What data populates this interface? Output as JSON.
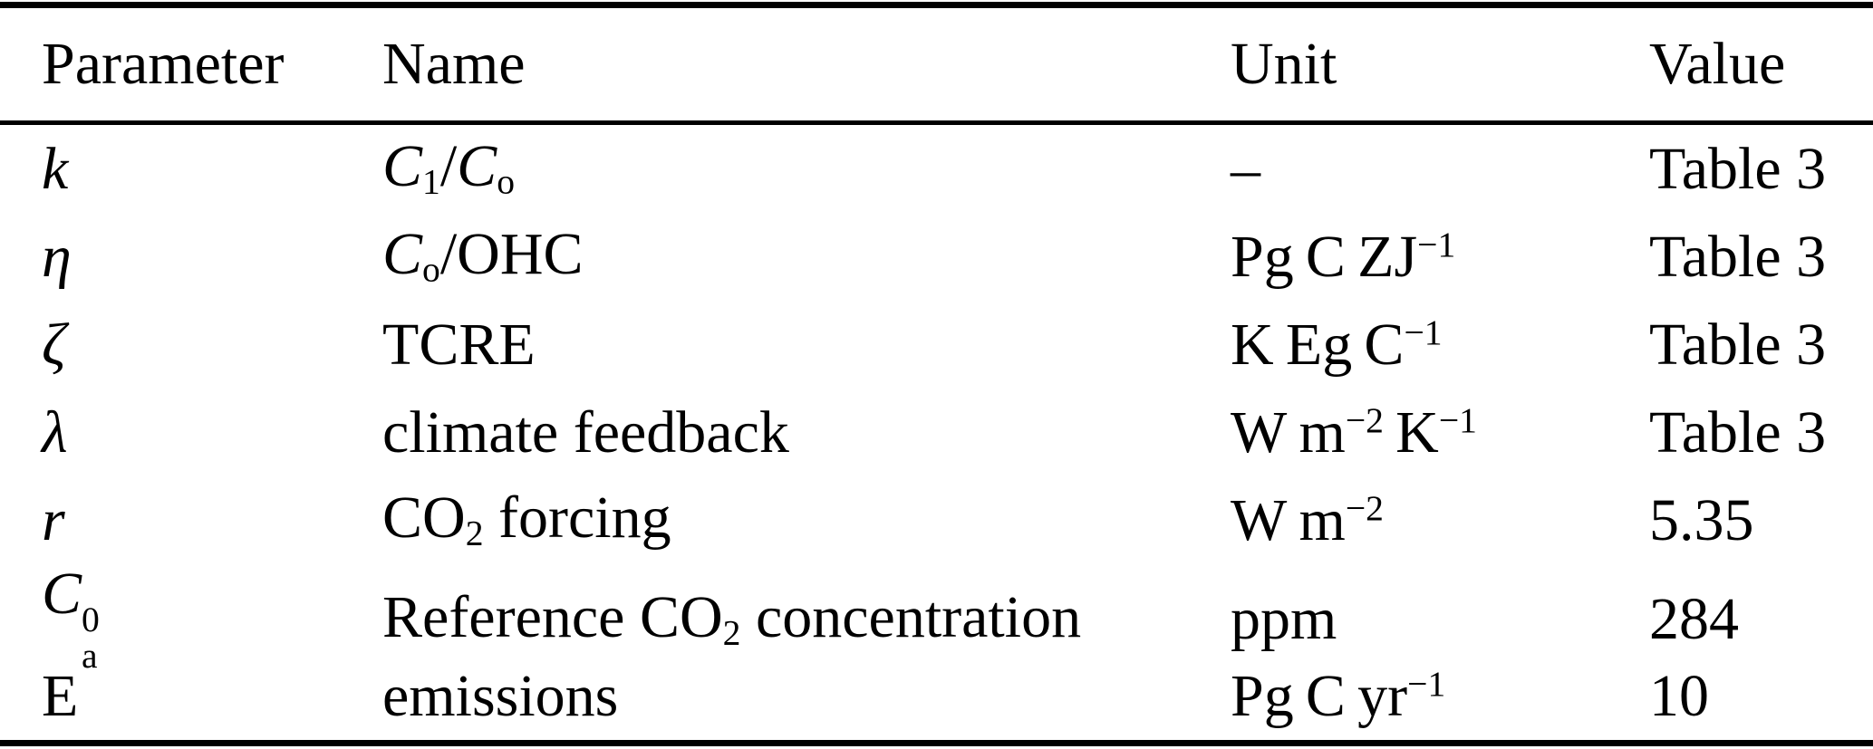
{
  "page": {
    "background": "#ffffff",
    "text_color": "#000000",
    "rule_color": "#000000"
  },
  "table": {
    "columns": [
      "Parameter",
      "Name",
      "Unit",
      "Value"
    ],
    "rows": [
      {
        "parameter": [
          {
            "t": "k",
            "s": "i"
          }
        ],
        "name": [
          {
            "t": "C",
            "s": "i"
          },
          {
            "t": "1",
            "s": "sub"
          },
          {
            "t": "/"
          },
          {
            "t": "C",
            "s": "i"
          },
          {
            "t": "o",
            "s": "sub"
          }
        ],
        "unit": [
          {
            "t": "–"
          }
        ],
        "value": [
          {
            "t": "Table 3"
          }
        ]
      },
      {
        "parameter": [
          {
            "t": "η",
            "s": "i"
          }
        ],
        "name": [
          {
            "t": "C",
            "s": "i"
          },
          {
            "t": "o",
            "s": "sub"
          },
          {
            "t": "/OHC"
          }
        ],
        "unit": [
          {
            "t": "Pg C ZJ"
          },
          {
            "t": "−1",
            "s": "sup"
          }
        ],
        "value": [
          {
            "t": "Table 3"
          }
        ]
      },
      {
        "parameter": [
          {
            "t": "ζ",
            "s": "i"
          }
        ],
        "name": [
          {
            "t": "TCRE"
          }
        ],
        "unit": [
          {
            "t": "K Eg C"
          },
          {
            "t": "−1",
            "s": "sup"
          }
        ],
        "value": [
          {
            "t": "Table 3"
          }
        ]
      },
      {
        "parameter": [
          {
            "t": "λ",
            "s": "i"
          }
        ],
        "name": [
          {
            "t": "climate feedback"
          }
        ],
        "unit": [
          {
            "t": "W m"
          },
          {
            "t": "−2",
            "s": "sup"
          },
          {
            "t": " K"
          },
          {
            "t": "−1",
            "s": "sup"
          }
        ],
        "value": [
          {
            "t": "Table 3"
          }
        ]
      },
      {
        "parameter": [
          {
            "t": "r",
            "s": "i"
          }
        ],
        "name": [
          {
            "t": "CO"
          },
          {
            "t": "2",
            "s": "sub"
          },
          {
            "t": " forcing"
          }
        ],
        "unit": [
          {
            "t": "W m"
          },
          {
            "t": "−2",
            "s": "sup"
          }
        ],
        "value": [
          {
            "t": "5.35"
          }
        ]
      },
      {
        "parameter": [
          {
            "t": "C",
            "s": "i"
          },
          {
            "s": "stack",
            "up": "0",
            "down": "a"
          }
        ],
        "name": [
          {
            "t": "Reference CO"
          },
          {
            "t": "2",
            "s": "sub"
          },
          {
            "t": " concentration"
          }
        ],
        "unit": [
          {
            "t": "ppm"
          }
        ],
        "value": [
          {
            "t": "284"
          }
        ]
      },
      {
        "parameter": [
          {
            "t": "E"
          }
        ],
        "name": [
          {
            "t": "emissions"
          }
        ],
        "unit": [
          {
            "t": "Pg C yr"
          },
          {
            "t": "−1",
            "s": "sup"
          }
        ],
        "value": [
          {
            "t": "10"
          }
        ]
      }
    ]
  },
  "chart_data": {
    "type": "table",
    "columns": [
      "Parameter",
      "Name",
      "Unit",
      "Value"
    ],
    "rows": [
      [
        "k",
        "C₁/Cₒ",
        "–",
        "Table 3"
      ],
      [
        "η",
        "Cₒ/OHC",
        "Pg C ZJ⁻¹",
        "Table 3"
      ],
      [
        "ζ",
        "TCRE",
        "K Eg C⁻¹",
        "Table 3"
      ],
      [
        "λ",
        "climate feedback",
        "W m⁻² K⁻¹",
        "Table 3"
      ],
      [
        "r",
        "CO₂ forcing",
        "W m⁻²",
        "5.35"
      ],
      [
        "Cₐ⁰",
        "Reference CO₂ concentration",
        "ppm",
        "284"
      ],
      [
        "E",
        "emissions",
        "Pg C yr⁻¹",
        "10"
      ]
    ]
  }
}
